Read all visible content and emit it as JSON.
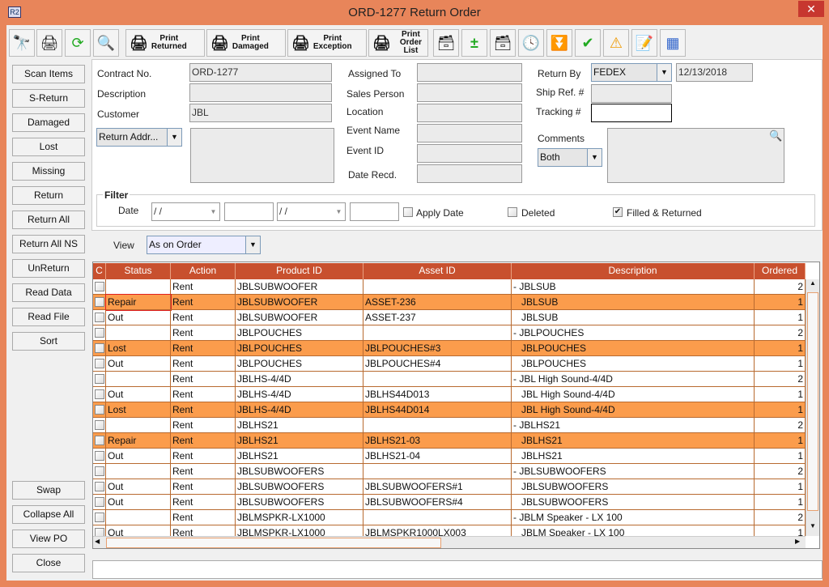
{
  "window": {
    "title": "ORD-1277 Return Order",
    "app_icon": "R2",
    "close": "✕"
  },
  "toolbar": {
    "icons": [
      "binoculars-icon",
      "printer-icon",
      "refresh-icon",
      "zoom-in-out-icon"
    ],
    "print_buttons": [
      {
        "l1": "Print",
        "l2": "Returned"
      },
      {
        "l1": "Print",
        "l2": "Damaged"
      },
      {
        "l1": "Print",
        "l2": "Exception"
      },
      {
        "l1": "Print",
        "l2": "Order List"
      }
    ],
    "right_icons": [
      "equipment-list-icon",
      "add-remove-icon",
      "equipment-alert-icon",
      "schedule-icon",
      "filter-down-icon",
      "filter-check-icon",
      "warning-document-icon",
      "notepad-edit-icon",
      "layout-grid-icon"
    ]
  },
  "sidebar": {
    "buttons": [
      "Scan Items",
      "S-Return",
      "Damaged",
      "Lost",
      "Missing",
      "Return",
      "Return All",
      "Return All NS",
      "UnReturn",
      "Read Data",
      "Read File",
      "Sort"
    ],
    "bottom_buttons": [
      "Swap",
      "Collapse All",
      "View PO",
      "Close"
    ]
  },
  "form": {
    "contract_no_label": "Contract No.",
    "contract_no": "ORD-1277",
    "description_label": "Description",
    "description": "",
    "customer_label": "Customer",
    "customer": "JBL",
    "return_addr": "Return Addr...",
    "assigned_to_label": "Assigned To",
    "sales_person_label": "Sales Person",
    "location_label": "Location",
    "event_name_label": "Event Name",
    "event_id_label": "Event ID",
    "date_recd_label": "Date Recd.",
    "return_by_label": "Return By",
    "return_by": "FEDEX",
    "return_date": "12/13/2018",
    "ship_ref_label": "Ship Ref. #",
    "tracking_label": "Tracking #",
    "comments_label": "Comments",
    "comments_filter": "Both"
  },
  "filter": {
    "title": "Filter",
    "date_label": "Date",
    "date_from": " / /",
    "date_to": " / /",
    "apply_date": "Apply Date",
    "apply_date_checked": false,
    "deleted": "Deleted",
    "deleted_checked": false,
    "filled_returned": "Filled & Returned",
    "filled_returned_checked": true
  },
  "view": {
    "label": "View",
    "value": "As on Order"
  },
  "table": {
    "columns": [
      "C",
      "Status",
      "Action",
      "Product ID",
      "Asset ID",
      "Description",
      "Ordered"
    ],
    "highlight_color": "#fb9c4c",
    "header_color": "#c8502e",
    "rows": [
      {
        "status": "",
        "action": "Rent",
        "product": "JBLSUBWOOFER",
        "asset": "",
        "desc": "- JBLSUB",
        "ordered": "2",
        "hl": false
      },
      {
        "status": "Repair",
        "action": "Rent",
        "product": "JBLSUBWOOFER",
        "asset": "ASSET-236",
        "desc": "JBLSUB",
        "ordered": "1",
        "hl": true
      },
      {
        "status": "Out",
        "action": "Rent",
        "product": "JBLSUBWOOFER",
        "asset": "ASSET-237",
        "desc": "JBLSUB",
        "ordered": "1",
        "hl": false
      },
      {
        "status": "",
        "action": "Rent",
        "product": "JBLPOUCHES",
        "asset": "",
        "desc": "- JBLPOUCHES",
        "ordered": "2",
        "hl": false
      },
      {
        "status": "Lost",
        "action": "Rent",
        "product": "JBLPOUCHES",
        "asset": "JBLPOUCHES#3",
        "desc": "JBLPOUCHES",
        "ordered": "1",
        "hl": true
      },
      {
        "status": "Out",
        "action": "Rent",
        "product": "JBLPOUCHES",
        "asset": "JBLPOUCHES#4",
        "desc": "JBLPOUCHES",
        "ordered": "1",
        "hl": false
      },
      {
        "status": "",
        "action": "Rent",
        "product": "JBLHS-4/4D",
        "asset": "",
        "desc": "- JBL High Sound-4/4D",
        "ordered": "2",
        "hl": false
      },
      {
        "status": "Out",
        "action": "Rent",
        "product": "JBLHS-4/4D",
        "asset": "JBLHS44D013",
        "desc": "JBL High Sound-4/4D",
        "ordered": "1",
        "hl": false
      },
      {
        "status": "Lost",
        "action": "Rent",
        "product": "JBLHS-4/4D",
        "asset": "JBLHS44D014",
        "desc": "JBL High Sound-4/4D",
        "ordered": "1",
        "hl": true
      },
      {
        "status": "",
        "action": "Rent",
        "product": "JBLHS21",
        "asset": "",
        "desc": "- JBLHS21",
        "ordered": "2",
        "hl": false
      },
      {
        "status": "Repair",
        "action": "Rent",
        "product": "JBLHS21",
        "asset": "JBLHS21-03",
        "desc": "JBLHS21",
        "ordered": "1",
        "hl": true
      },
      {
        "status": "Out",
        "action": "Rent",
        "product": "JBLHS21",
        "asset": "JBLHS21-04",
        "desc": "JBLHS21",
        "ordered": "1",
        "hl": false
      },
      {
        "status": "",
        "action": "Rent",
        "product": "JBLSUBWOOFERS",
        "asset": "",
        "desc": "- JBLSUBWOOFERS",
        "ordered": "2",
        "hl": false
      },
      {
        "status": "Out",
        "action": "Rent",
        "product": "JBLSUBWOOFERS",
        "asset": "JBLSUBWOOFERS#1",
        "desc": "JBLSUBWOOFERS",
        "ordered": "1",
        "hl": false
      },
      {
        "status": "Out",
        "action": "Rent",
        "product": "JBLSUBWOOFERS",
        "asset": "JBLSUBWOOFERS#4",
        "desc": "JBLSUBWOOFERS",
        "ordered": "1",
        "hl": false
      },
      {
        "status": "",
        "action": "Rent",
        "product": "JBLMSPKR-LX1000",
        "asset": "",
        "desc": "- JBLM Speaker - LX 100",
        "ordered": "2",
        "hl": false
      },
      {
        "status": "Out",
        "action": "Rent",
        "product": "JBLMSPKR-LX1000",
        "asset": "JBLMSPKR1000LX003",
        "desc": "JBLM Speaker - LX 100",
        "ordered": "1",
        "hl": false
      }
    ]
  },
  "status_bar": {
    "text": ""
  }
}
